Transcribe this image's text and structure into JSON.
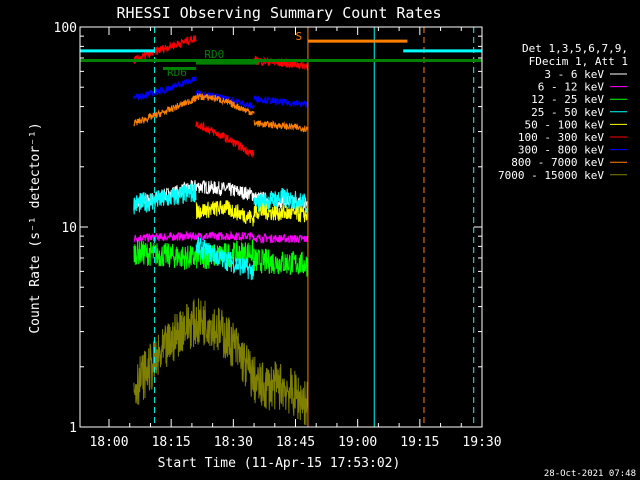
{
  "chart_data": {
    "type": "line",
    "title": "RHESSI Observing Summary Count Rates",
    "xlabel": "Start Time (11-Apr-15 17:53:02)",
    "ylabel": "Count Rate (s⁻¹ detector⁻¹)",
    "yscale": "log",
    "ylim": [
      1,
      100
    ],
    "xlim": [
      "17:53",
      "19:30"
    ],
    "x_ticks": [
      "18:00",
      "18:15",
      "18:30",
      "18:45",
      "19:00",
      "19:15",
      "19:30"
    ],
    "y_ticks": [
      "1",
      "10",
      "100"
    ],
    "legend": {
      "placement": "right",
      "header": [
        "Det 1,3,5,6,7,9,",
        "FDecim 1, Att 1"
      ],
      "entries": [
        {
          "label": "3 - 6 keV",
          "color": "#ffffff"
        },
        {
          "label": "6 - 12 keV",
          "color": "#ff00ff"
        },
        {
          "label": "12 - 25 keV",
          "color": "#00ff00"
        },
        {
          "label": "25 - 50 keV",
          "color": "#00ffff"
        },
        {
          "label": "50 - 100 keV",
          "color": "#ffff00"
        },
        {
          "label": "100 - 300 keV",
          "color": "#ff0000"
        },
        {
          "label": "300 - 800 keV",
          "color": "#0000ff"
        },
        {
          "label": "800 - 7000 keV",
          "color": "#ff8000"
        },
        {
          "label": "7000 - 15000 keV",
          "color": "#808000"
        }
      ]
    },
    "series": [
      {
        "name": "3 - 6 keV",
        "color": "#ffffff",
        "noise": 0.1,
        "segments": [
          {
            "x": [
              "18:06",
              "18:14",
              "18:21",
              "18:28",
              "18:35"
            ],
            "y": [
              13,
              14.5,
              16,
              15.5,
              14.5
            ]
          },
          {
            "x": [
              "18:35",
              "18:42",
              "18:48"
            ],
            "y": [
              14,
              13.5,
              13
            ]
          }
        ]
      },
      {
        "name": "6 - 12 keV",
        "color": "#ff00ff",
        "noise": 0.06,
        "segments": [
          {
            "x": [
              "18:06",
              "18:20",
              "18:35"
            ],
            "y": [
              8.8,
              9,
              9
            ]
          },
          {
            "x": [
              "18:35",
              "18:48"
            ],
            "y": [
              8.8,
              8.7
            ]
          }
        ]
      },
      {
        "name": "12 - 25 keV",
        "color": "#00ff00",
        "noise": 0.18,
        "segments": [
          {
            "x": [
              "18:06",
              "18:20",
              "18:35"
            ],
            "y": [
              7.5,
              7,
              7.5
            ]
          },
          {
            "x": [
              "18:35",
              "18:48"
            ],
            "y": [
              6.8,
              6.5
            ]
          }
        ]
      },
      {
        "name": "25 - 50 keV",
        "color": "#00ffff",
        "noise": 0.15,
        "segments": [
          {
            "x": [
              "18:06",
              "18:15",
              "18:21"
            ],
            "y": [
              13,
              14,
              15
            ]
          },
          {
            "x": [
              "18:21",
              "18:27",
              "18:35"
            ],
            "y": [
              8,
              7,
              6
            ]
          },
          {
            "x": [
              "18:35",
              "18:42",
              "18:48"
            ],
            "y": [
              13,
              14,
              13
            ]
          }
        ]
      },
      {
        "name": "50 - 100 keV",
        "color": "#ffff00",
        "noise": 0.12,
        "segments": [
          {
            "x": [
              "18:21",
              "18:28",
              "18:35"
            ],
            "y": [
              12,
              12.5,
              11
            ]
          },
          {
            "x": [
              "18:35",
              "18:48"
            ],
            "y": [
              12,
              11.5
            ]
          }
        ]
      },
      {
        "name": "100 - 300 keV",
        "color": "#ff0000",
        "noise": 0.06,
        "segments": [
          {
            "x": [
              "18:06",
              "18:13",
              "18:21"
            ],
            "y": [
              68,
              78,
              88
            ]
          },
          {
            "x": [
              "18:21",
              "18:28",
              "18:35"
            ],
            "y": [
              33,
              28,
              23
            ]
          },
          {
            "x": [
              "18:35",
              "18:42",
              "18:48"
            ],
            "y": [
              68,
              66,
              64
            ]
          }
        ]
      },
      {
        "name": "300 - 800 keV",
        "color": "#0000ff",
        "noise": 0.05,
        "segments": [
          {
            "x": [
              "18:06",
              "18:14",
              "18:21"
            ],
            "y": [
              44,
              49,
              55
            ]
          },
          {
            "x": [
              "18:21",
              "18:28",
              "18:35"
            ],
            "y": [
              47,
              44,
              40
            ]
          },
          {
            "x": [
              "18:35",
              "18:42",
              "18:48"
            ],
            "y": [
              44,
              42,
              41
            ]
          }
        ]
      },
      {
        "name": "800 - 7000 keV",
        "color": "#ff8000",
        "noise": 0.05,
        "segments": [
          {
            "x": [
              "18:06",
              "18:14",
              "18:21"
            ],
            "y": [
              33,
              38,
              44
            ]
          },
          {
            "x": [
              "18:21",
              "18:26",
              "18:35"
            ],
            "y": [
              45,
              44,
              37
            ]
          },
          {
            "x": [
              "18:35",
              "18:42",
              "18:48"
            ],
            "y": [
              33,
              32,
              31
            ]
          }
        ]
      },
      {
        "name": "7000 - 15000 keV",
        "color": "#808000",
        "noise": 0.35,
        "segments": [
          {
            "x": [
              "18:06",
              "18:12",
              "18:18",
              "18:24",
              "18:30",
              "18:36",
              "18:42",
              "18:48"
            ],
            "y": [
              1.6,
              2.2,
              3.2,
              3.4,
              2.6,
              1.6,
              1.6,
              1.3
            ]
          }
        ]
      }
    ],
    "annotations": {
      "flags": [
        {
          "label": "RD6",
          "color": "#008000",
          "x": [
            "18:13",
            "18:21"
          ],
          "y": 62,
          "text_x": "18:14",
          "text_y": 57
        },
        {
          "label": "RD0",
          "color": "#008000",
          "x": [
            "18:21",
            "18:36"
          ],
          "y": 66,
          "text_x": "18:23",
          "text_y": 70
        },
        {
          "label": "S",
          "color": "#ff8000",
          "x": [
            "18:48",
            "19:12"
          ],
          "y": 85,
          "text_x": "18:45",
          "text_y": 86
        }
      ],
      "attenuator_line": {
        "color": "#008000",
        "x": [
          "17:53",
          "19:30"
        ],
        "y": 68
      },
      "cyan_bars": [
        {
          "x": [
            "17:53",
            "18:11"
          ],
          "y": 76
        },
        {
          "x": [
            "19:11",
            "19:30"
          ],
          "y": 76
        }
      ],
      "vertical_lines": [
        {
          "x": "17:53",
          "color": "#00ffff",
          "style": "solid"
        },
        {
          "x": "18:11",
          "color": "#00ffff",
          "style": "dashed"
        },
        {
          "x": "18:48",
          "color": "#ff8000",
          "style": "solid"
        },
        {
          "x": "19:04",
          "color": "#00ffff",
          "style": "solid"
        },
        {
          "x": "19:16",
          "color": "#ff8000",
          "style": "dashed"
        },
        {
          "x": "19:28",
          "color": "#00ffff",
          "style": "dashed"
        }
      ]
    },
    "timestamp": "28-Oct-2021 07:48"
  }
}
